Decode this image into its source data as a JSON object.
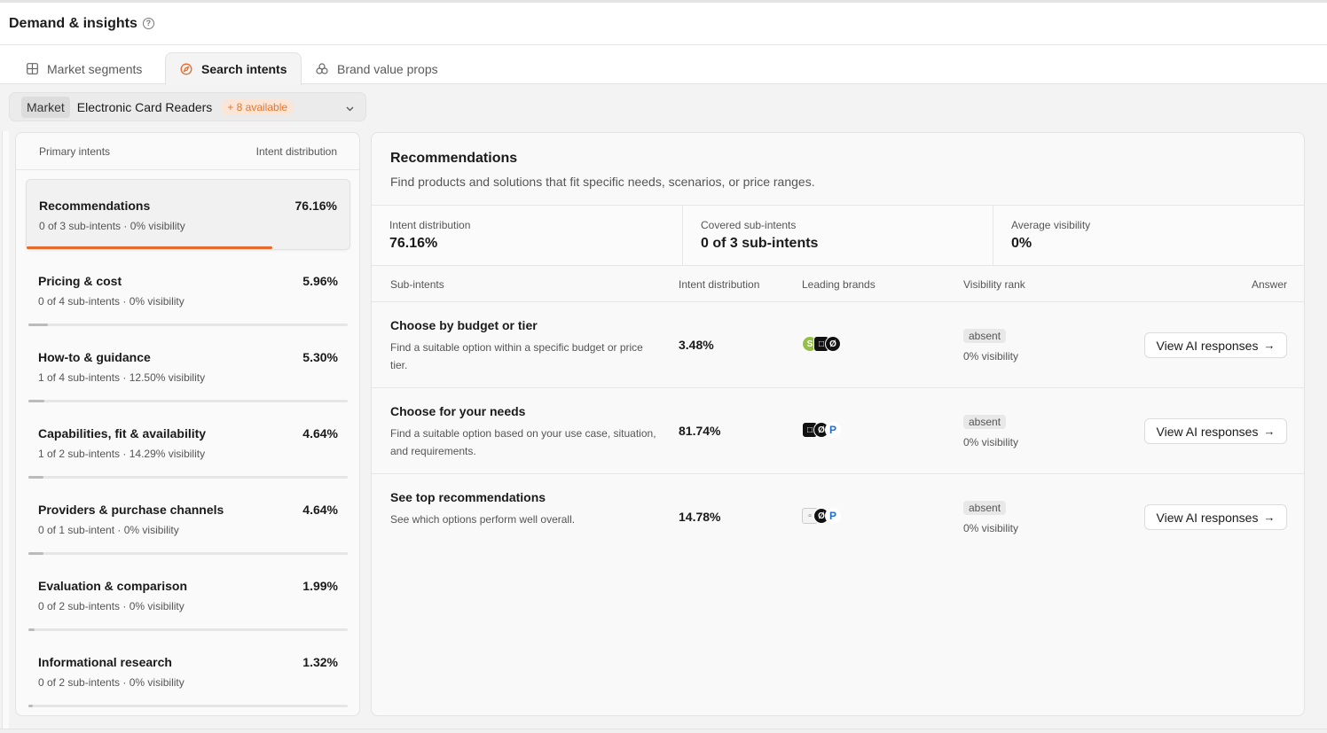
{
  "header": {
    "title": "Demand & insights",
    "help_icon": "question-circle-icon"
  },
  "tabs": [
    {
      "label": "Market segments",
      "icon": "grid-icon",
      "active": false
    },
    {
      "label": "Search intents",
      "icon": "compass-icon",
      "active": true
    },
    {
      "label": "Brand value props",
      "icon": "circles-icon",
      "active": false
    }
  ],
  "market": {
    "pill": "Market",
    "name": "Electronic Card Readers",
    "badge": "+ 8 available",
    "accent": "#e8762d"
  },
  "left": {
    "col_left": "Primary intents",
    "col_right": "Intent distribution",
    "intents": [
      {
        "name": "Recommendations",
        "pct": "76.16%",
        "sub": "0 of 3 sub-intents · 0% visibility",
        "fill": 0.76
      },
      {
        "name": "Pricing & cost",
        "pct": "5.96%",
        "sub": "0 of 4 sub-intents · 0% visibility",
        "fill": 0.06
      },
      {
        "name": "How-to & guidance",
        "pct": "5.30%",
        "sub": "1 of 4 sub-intents · 12.50% visibility",
        "fill": 0.05
      },
      {
        "name": "Capabilities, fit & availability",
        "pct": "4.64%",
        "sub": "1 of 2 sub-intents · 14.29% visibility",
        "fill": 0.046
      },
      {
        "name": "Providers & purchase channels",
        "pct": "4.64%",
        "sub": "0 of 1 sub-intent · 0% visibility",
        "fill": 0.046
      },
      {
        "name": "Evaluation & comparison",
        "pct": "1.99%",
        "sub": "0 of 2 sub-intents · 0% visibility",
        "fill": 0.02
      },
      {
        "name": "Informational research",
        "pct": "1.32%",
        "sub": "0 of 2 sub-intents · 0% visibility",
        "fill": 0.013
      }
    ]
  },
  "right": {
    "title": "Recommendations",
    "description": "Find products and solutions that fit specific needs, scenarios, or price ranges.",
    "stats": [
      {
        "label": "Intent distribution",
        "value": "76.16%"
      },
      {
        "label": "Covered sub-intents",
        "value": "0 of 3 sub-intents"
      },
      {
        "label": "Average visibility",
        "value": "0%"
      }
    ],
    "columns": {
      "sub_intents": "Sub-intents",
      "distribution": "Intent distribution",
      "brands": "Leading brands",
      "rank": "Visibility rank",
      "answer": "Answer"
    },
    "rows": [
      {
        "title": "Choose by budget or tier",
        "desc": "Find a suitable option within a specific budget or price tier.",
        "dist": "3.48%",
        "badge": "absent",
        "vis": "0% visibility",
        "button": "View AI responses"
      },
      {
        "title": "Choose for your needs",
        "desc": "Find a suitable option based on your use case, situation, and requirements.",
        "dist": "81.74%",
        "badge": "absent",
        "vis": "0% visibility",
        "button": "View AI responses"
      },
      {
        "title": "See top recommendations",
        "desc": "See which options perform well overall.",
        "dist": "14.78%",
        "badge": "absent",
        "vis": "0% visibility",
        "button": "View AI responses"
      }
    ]
  }
}
